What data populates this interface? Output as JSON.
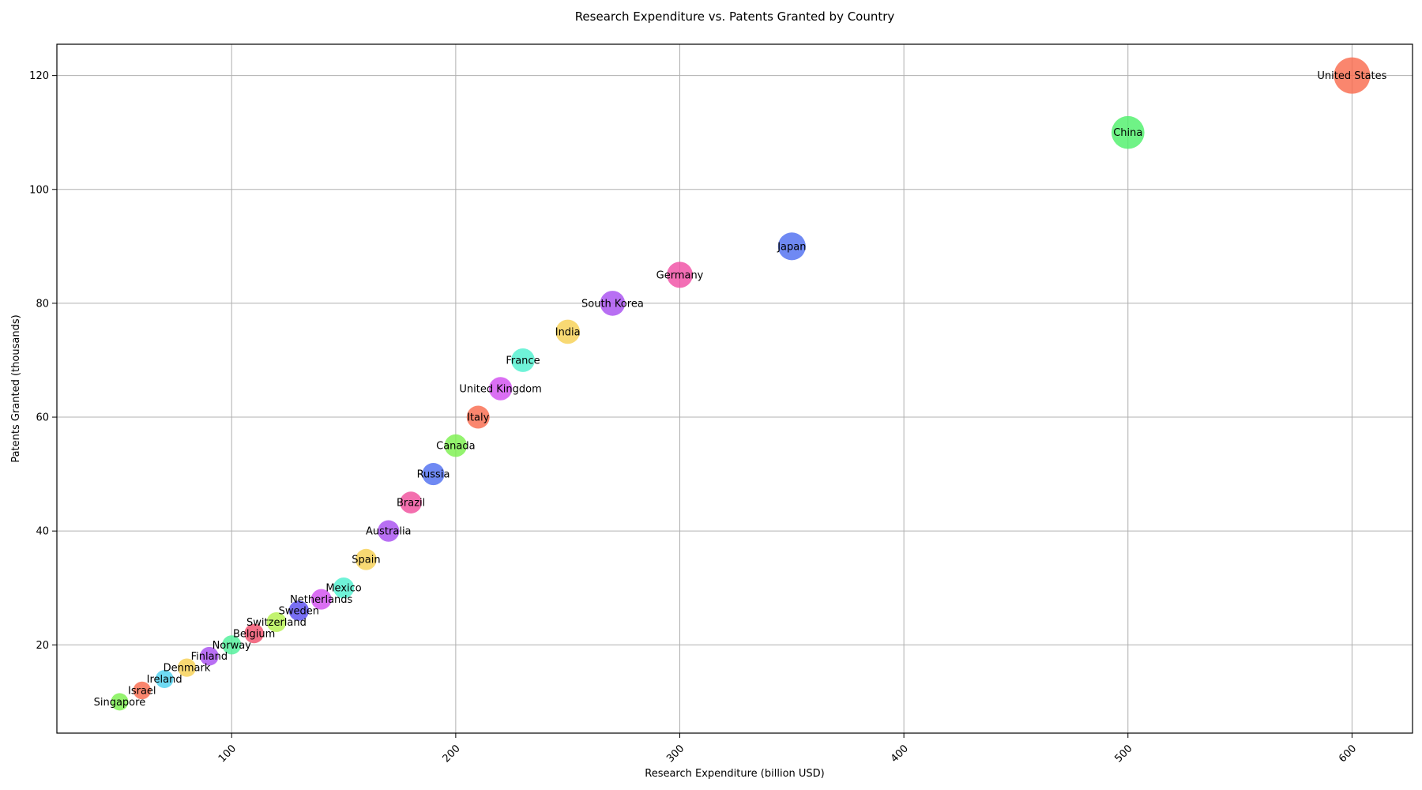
{
  "chart_data": {
    "type": "scatter",
    "title": "Research Expenditure vs. Patents Granted by Country",
    "xlabel": "Research Expenditure (billion USD)",
    "ylabel": "Patents Granted (thousands)",
    "xlim": [
      22,
      627
    ],
    "ylim": [
      4.5,
      125.5
    ],
    "xticks": [
      100,
      200,
      300,
      400,
      500,
      600
    ],
    "yticks": [
      20,
      40,
      60,
      80,
      100,
      120
    ],
    "grid": true,
    "legend": "none",
    "points": [
      {
        "label": "United States",
        "x": 600,
        "y": 120,
        "color": "#f96b4e"
      },
      {
        "label": "China",
        "x": 500,
        "y": 110,
        "color": "#4ff06b"
      },
      {
        "label": "Japan",
        "x": 350,
        "y": 90,
        "color": "#4f6ff0"
      },
      {
        "label": "Germany",
        "x": 300,
        "y": 85,
        "color": "#f04fa5"
      },
      {
        "label": "South Korea",
        "x": 270,
        "y": 80,
        "color": "#a84ff0"
      },
      {
        "label": "India",
        "x": 250,
        "y": 75,
        "color": "#f7d154"
      },
      {
        "label": "France",
        "x": 230,
        "y": 70,
        "color": "#4ff0cf"
      },
      {
        "label": "United Kingdom",
        "x": 220,
        "y": 65,
        "color": "#d24ff0"
      },
      {
        "label": "Italy",
        "x": 210,
        "y": 60,
        "color": "#f96b4e"
      },
      {
        "label": "Canada",
        "x": 200,
        "y": 55,
        "color": "#7df04f"
      },
      {
        "label": "Russia",
        "x": 190,
        "y": 50,
        "color": "#4f6ff0"
      },
      {
        "label": "Brazil",
        "x": 180,
        "y": 45,
        "color": "#f04f9c"
      },
      {
        "label": "Australia",
        "x": 170,
        "y": 40,
        "color": "#a84ff0"
      },
      {
        "label": "Spain",
        "x": 160,
        "y": 35,
        "color": "#f7d154"
      },
      {
        "label": "Mexico",
        "x": 150,
        "y": 30,
        "color": "#4ff0cf"
      },
      {
        "label": "Netherlands",
        "x": 140,
        "y": 28,
        "color": "#d24ff0"
      },
      {
        "label": "Sweden",
        "x": 130,
        "y": 26,
        "color": "#5a4ff0"
      },
      {
        "label": "Switzerland",
        "x": 120,
        "y": 24,
        "color": "#b4f04f"
      },
      {
        "label": "Belgium",
        "x": 110,
        "y": 22,
        "color": "#f04f6b"
      },
      {
        "label": "Norway",
        "x": 100,
        "y": 20,
        "color": "#4ff09a"
      },
      {
        "label": "Finland",
        "x": 90,
        "y": 18,
        "color": "#a84ff0"
      },
      {
        "label": "Denmark",
        "x": 80,
        "y": 16,
        "color": "#f7d154"
      },
      {
        "label": "Ireland",
        "x": 70,
        "y": 14,
        "color": "#4fd2f0"
      },
      {
        "label": "Israel",
        "x": 60,
        "y": 12,
        "color": "#f96b4e"
      },
      {
        "label": "Singapore",
        "x": 50,
        "y": 10,
        "color": "#7df04f"
      }
    ]
  }
}
